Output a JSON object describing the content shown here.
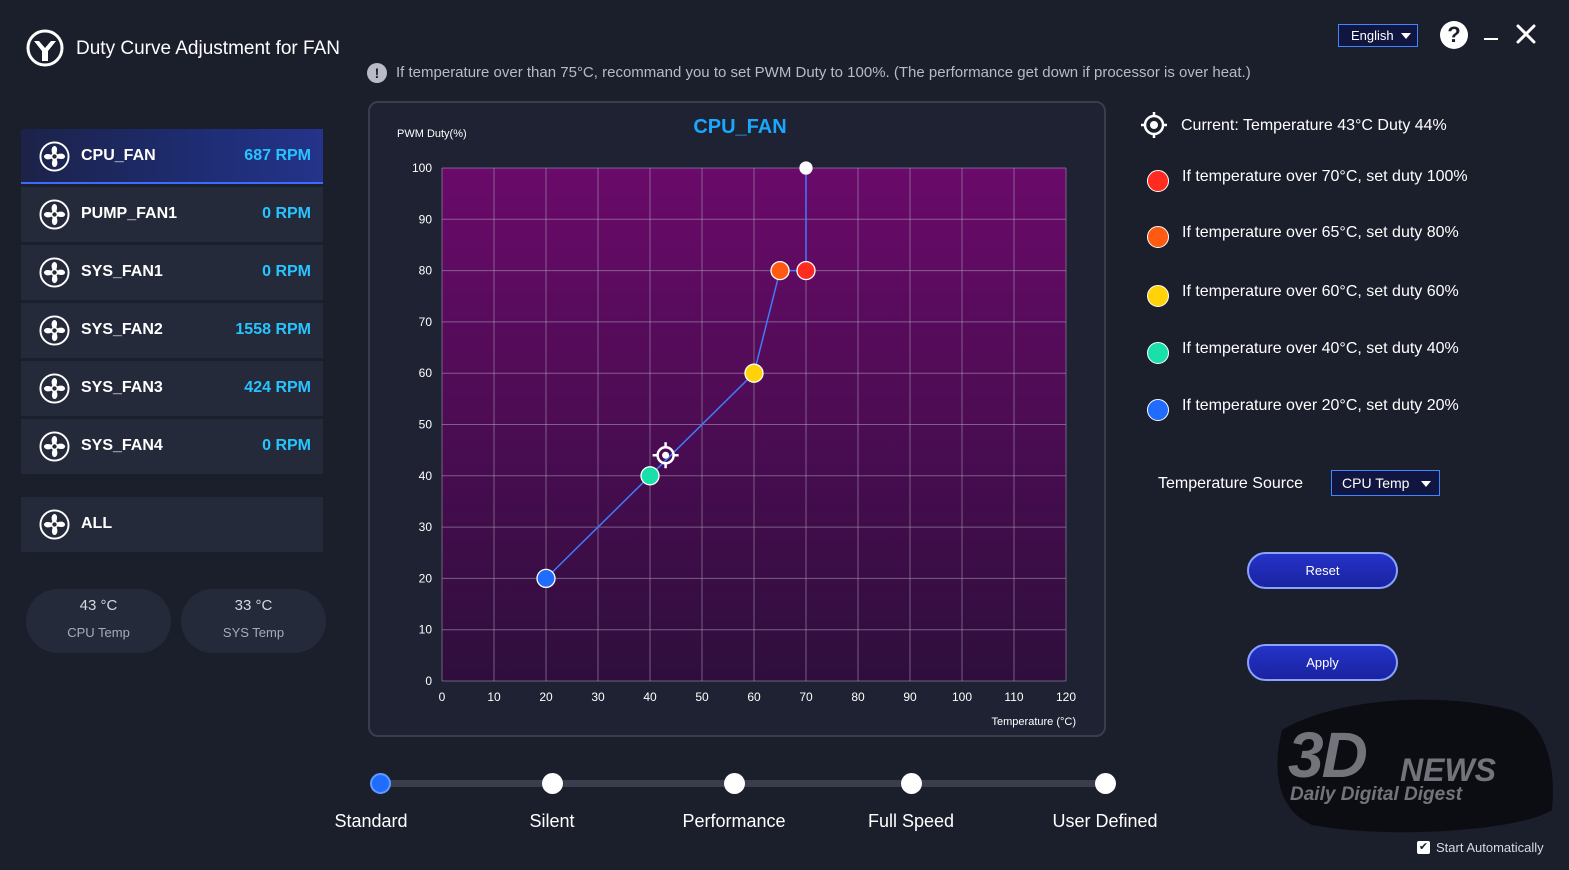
{
  "window": {
    "title": "Duty Curve Adjustment for FAN",
    "language": "English"
  },
  "notice": {
    "text": "If temperature over than 75°C, recommand you to set PWM Duty to 100%. (The performance get down if processor is over heat.)"
  },
  "sidebar": {
    "fans": [
      {
        "name": "CPU_FAN",
        "rpm": "687  RPM",
        "active": true
      },
      {
        "name": "PUMP_FAN1",
        "rpm": "0  RPM",
        "active": false
      },
      {
        "name": "SYS_FAN1",
        "rpm": "0  RPM",
        "active": false
      },
      {
        "name": "SYS_FAN2",
        "rpm": "1558  RPM",
        "active": false
      },
      {
        "name": "SYS_FAN3",
        "rpm": "424  RPM",
        "active": false
      },
      {
        "name": "SYS_FAN4",
        "rpm": "0  RPM",
        "active": false
      }
    ],
    "all_label": "ALL",
    "temps": [
      {
        "value": "43 °C",
        "label": "CPU Temp"
      },
      {
        "value": "33 °C",
        "label": "SYS Temp"
      }
    ]
  },
  "chart_data": {
    "type": "line",
    "title": "CPU_FAN",
    "xlabel": "Temperature (°C)",
    "ylabel": "PWM Duty(%)",
    "xlim": [
      0,
      120
    ],
    "ylim": [
      0,
      100
    ],
    "xticks": [
      "0",
      "10",
      "20",
      "30",
      "40",
      "50",
      "60",
      "70",
      "80",
      "90",
      "100",
      "110",
      "120"
    ],
    "yticks": [
      "0",
      "10",
      "20",
      "30",
      "40",
      "50",
      "60",
      "70",
      "80",
      "90",
      "100"
    ],
    "grid": true,
    "series": [
      {
        "x": [
          20,
          40,
          60,
          65,
          70,
          70
        ],
        "y": [
          20,
          40,
          60,
          80,
          80,
          100
        ],
        "point_colors": [
          "#1f6cff",
          "#19e0a8",
          "#ffd20a",
          "#ff5a12",
          "#ff2b1e",
          "#ffffff"
        ]
      }
    ],
    "current_point": {
      "x": 43,
      "y": 44
    }
  },
  "legend": {
    "current": "Current: Temperature 43°C Duty 44%",
    "rules": [
      {
        "text": "If temperature over 70°C, set duty 100%",
        "color": "#ff2b1e"
      },
      {
        "text": "If temperature over 65°C, set duty 80%",
        "color": "#ff5a12"
      },
      {
        "text": "If temperature over 60°C, set duty 60%",
        "color": "#ffd20a"
      },
      {
        "text": "If temperature over 40°C, set duty 40%",
        "color": "#19e0a8"
      },
      {
        "text": "If temperature over 20°C, set duty 20%",
        "color": "#1f6cff"
      }
    ]
  },
  "temperature_source": {
    "label": "Temperature Source",
    "value": "CPU Temp"
  },
  "buttons": {
    "reset": "Reset",
    "apply": "Apply"
  },
  "modes": {
    "items": [
      "Standard",
      "Silent",
      "Performance",
      "Full Speed",
      "User Defined"
    ],
    "selected": "Standard"
  },
  "watermark": {
    "brand": "3D",
    "brand2": "NEWS",
    "tagline": "Daily Digital Digest"
  },
  "start_automatically": {
    "label": "Start Automatically",
    "checked": true
  },
  "icons": {
    "logo": "app-logo-icon",
    "help": "help-icon",
    "minimize": "minimize-icon",
    "close": "close-icon",
    "fan": "fan-icon",
    "notice": "info-icon",
    "target": "target-icon"
  },
  "colors": {
    "accent": "#27c4ff",
    "chart_title": "#1aa8ff",
    "plot_top": "#6a0a6a",
    "plot_bottom": "#2e0e3c"
  }
}
